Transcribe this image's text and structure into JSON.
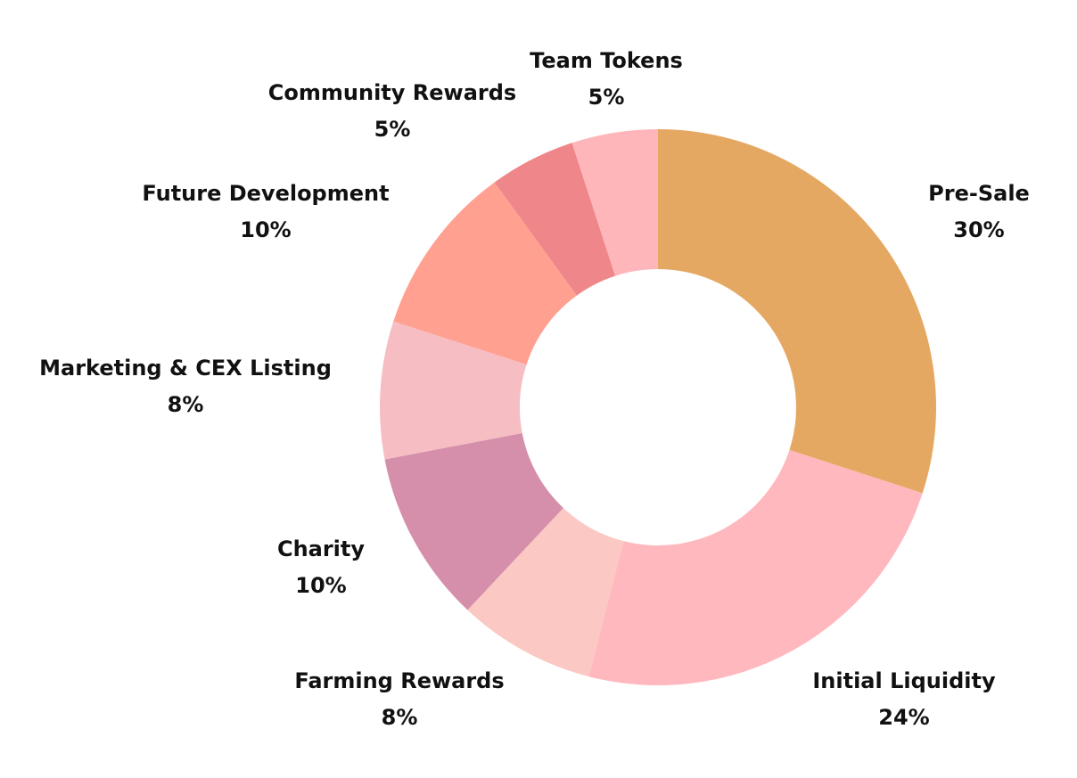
{
  "chart_data": {
    "type": "pie",
    "variant": "donut",
    "title": "",
    "slices": [
      {
        "label": "Pre-Sale",
        "value": 30,
        "display": "30%",
        "color": "#E5A862"
      },
      {
        "label": "Initial Liquidity",
        "value": 24,
        "display": "24%",
        "color": "#FFB8BE"
      },
      {
        "label": "Farming Rewards",
        "value": 8,
        "display": "8%",
        "color": "#FBC8C4"
      },
      {
        "label": "Charity",
        "value": 10,
        "display": "10%",
        "color": "#D58FAA"
      },
      {
        "label": "Marketing & CEX Listing",
        "value": 8,
        "display": "8%",
        "color": "#F6BDC3"
      },
      {
        "label": "Future Development",
        "value": 10,
        "display": "10%",
        "color": "#FFA091"
      },
      {
        "label": "Community Rewards",
        "value": 5,
        "display": "5%",
        "color": "#EF878A"
      },
      {
        "label": "Team Tokens",
        "value": 5,
        "display": "5%",
        "color": "#FFB6BA"
      }
    ],
    "legend": "none",
    "labels_outside": true
  }
}
